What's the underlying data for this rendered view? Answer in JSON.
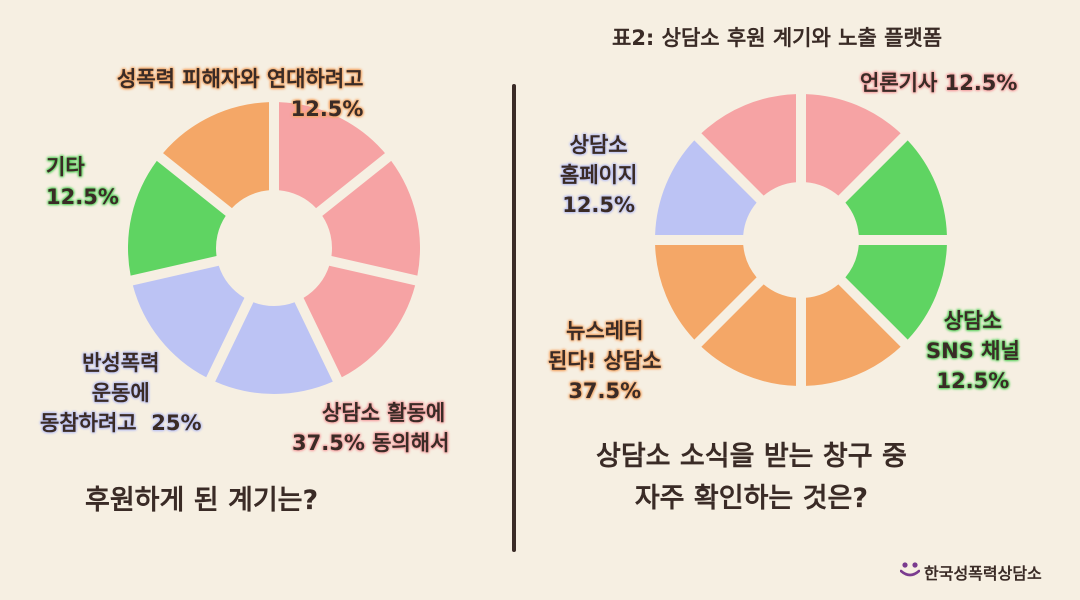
{
  "chart_data": [
    {
      "type": "donut",
      "question": "후원하게 된 계기는?",
      "slices": [
        {
          "label": "상담소 활동에 동의해서",
          "value": 37.5,
          "color": "#f6a3a4"
        },
        {
          "label": "반성폭력 운동에 동참하려고",
          "value": 25,
          "color": "#bcc3f4"
        },
        {
          "label": "기타",
          "value": 12.5,
          "color": "#5fd462"
        },
        {
          "label": "성폭력 피해자와 연대하려고",
          "value": 12.5,
          "color": "#f4a767"
        }
      ]
    },
    {
      "type": "donut",
      "title": "표2: 상담소 후원 계기와 노출 플랫폼",
      "question": "상담소 소식을 받는 창구 중 자주 확인하는 것은?",
      "slices": [
        {
          "label": "언론기사",
          "value": 12.5,
          "color": "#f6a3a4"
        },
        {
          "label": "상담소 SNS 채널",
          "value": 12.5,
          "color": "#5fd462"
        },
        {
          "label": "뉴스레터 된다! 상담소",
          "value": 37.5,
          "color": "#f4a767"
        },
        {
          "label": "상담소 홈페이지",
          "value": 12.5,
          "color": "#bcc3f4"
        }
      ]
    }
  ],
  "left": {
    "labels": {
      "solidarity": {
        "line1": "성폭력 피해자와 연대하려고",
        "line2": "12.5%"
      },
      "other": {
        "line1": "기타",
        "line2": "12.5%"
      },
      "movement": {
        "line1": "반성폭력",
        "line2": "운동에",
        "line3": "동참하려고",
        "pct": "25%"
      },
      "agree": {
        "line1": "상담소 활동에",
        "line2a": "37.5%",
        "line2b": "동의해서"
      }
    },
    "question": "후원하게 된 계기는?"
  },
  "right": {
    "title": "표2: 상담소 후원 계기와 노출 플랫폼",
    "labels": {
      "press": {
        "line1": "언론기사",
        "pct": "12.5%"
      },
      "homepage": {
        "line1": "상담소",
        "line2": "홈페이지",
        "line3": "12.5%"
      },
      "sns": {
        "line1": "상담소",
        "line2": "SNS 채널",
        "line3": "12.5%"
      },
      "newsletter": {
        "line1": "뉴스레터",
        "line2": "된다! 상담소",
        "line3": "37.5%"
      }
    },
    "question_line1": "상담소 소식을 받는 창구 중",
    "question_line2": "자주 확인하는 것은?"
  },
  "logo": {
    "text": "한국성폭력상담소",
    "icon": "people-logo-icon",
    "color": "#7a3b8f"
  }
}
